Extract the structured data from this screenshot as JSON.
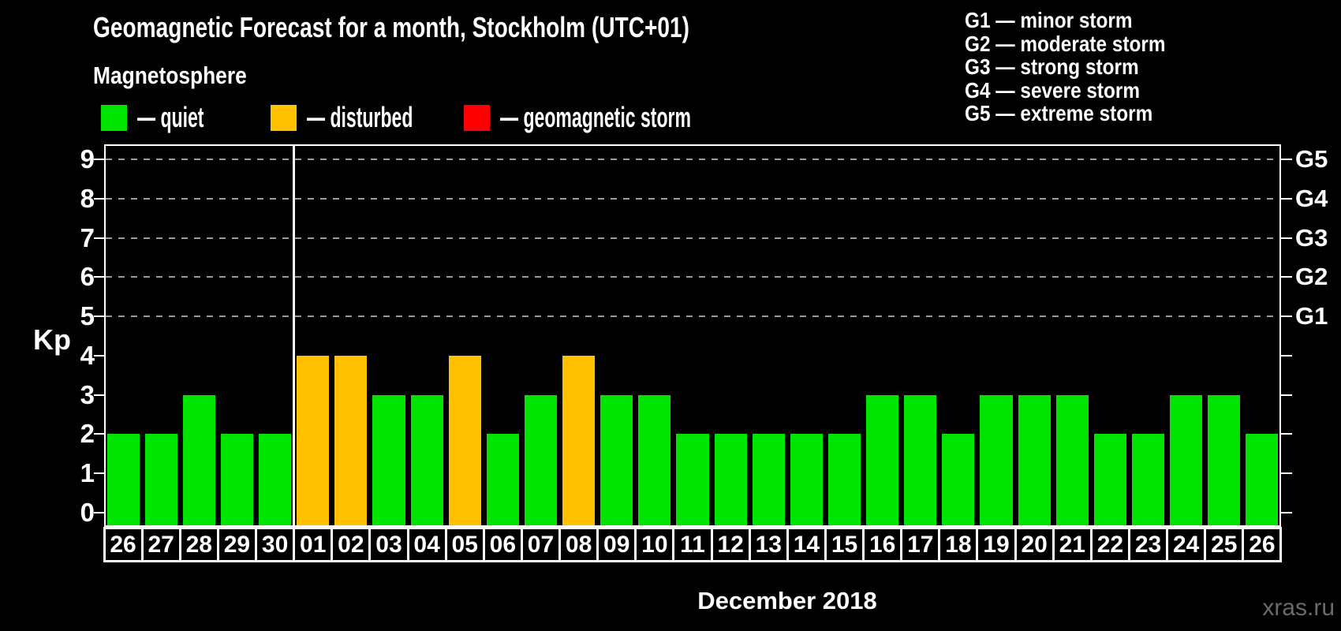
{
  "title": "Geomagnetic Forecast for a month, Stockholm (UTC+01)",
  "subtitle": "Magnetosphere",
  "legend": {
    "items": [
      {
        "key": "quiet",
        "label": "— quiet",
        "color": "#00E400"
      },
      {
        "key": "disturbed",
        "label": "— disturbed",
        "color": "#FFC000"
      },
      {
        "key": "storm",
        "label": "— geomagnetic storm",
        "color": "#FF0000"
      }
    ]
  },
  "g_scale_legend": {
    "lines": [
      "G1 — minor storm",
      "G2 — moderate storm",
      "G3 — strong storm",
      "G4 — severe storm",
      "G5 — extreme storm"
    ]
  },
  "axis": {
    "y_label": "Kp",
    "x_title": "December 2018"
  },
  "watermark": "xras.ru",
  "chart_data": {
    "type": "bar",
    "title": "Geomagnetic Forecast for a month, Stockholm (UTC+01)",
    "subtitle": "Magnetosphere",
    "ylabel": "Kp",
    "xlabel": "December 2018",
    "ylim": [
      0,
      9
    ],
    "y_ticks": [
      0,
      1,
      2,
      3,
      4,
      5,
      6,
      7,
      8,
      9
    ],
    "gridlines_at": [
      5,
      6,
      7,
      8,
      9
    ],
    "grid_style": "dashed",
    "legend_position": "top-left",
    "right_axis_labels": [
      {
        "kp": 5,
        "label": "G1"
      },
      {
        "kp": 6,
        "label": "G2"
      },
      {
        "kp": 7,
        "label": "G3"
      },
      {
        "kp": 8,
        "label": "G4"
      },
      {
        "kp": 9,
        "label": "G5"
      }
    ],
    "categories": [
      "26",
      "27",
      "28",
      "29",
      "30",
      "01",
      "02",
      "03",
      "04",
      "05",
      "06",
      "07",
      "08",
      "09",
      "10",
      "11",
      "12",
      "13",
      "14",
      "15",
      "16",
      "17",
      "18",
      "19",
      "20",
      "21",
      "22",
      "23",
      "24",
      "25",
      "26"
    ],
    "values": [
      2,
      2,
      3,
      2,
      2,
      4,
      4,
      3,
      3,
      4,
      2,
      3,
      4,
      3,
      3,
      2,
      2,
      2,
      2,
      2,
      3,
      3,
      2,
      3,
      3,
      3,
      2,
      2,
      3,
      3,
      2
    ],
    "statuses": [
      "quiet",
      "quiet",
      "quiet",
      "quiet",
      "quiet",
      "disturbed",
      "disturbed",
      "quiet",
      "quiet",
      "disturbed",
      "quiet",
      "quiet",
      "disturbed",
      "quiet",
      "quiet",
      "quiet",
      "quiet",
      "quiet",
      "quiet",
      "quiet",
      "quiet",
      "quiet",
      "quiet",
      "quiet",
      "quiet",
      "quiet",
      "quiet",
      "quiet",
      "quiet",
      "quiet",
      "quiet"
    ],
    "status_colors": {
      "quiet": "#00E400",
      "disturbed": "#FFC000",
      "storm": "#FF0000"
    },
    "month_boundary_index": 5
  }
}
